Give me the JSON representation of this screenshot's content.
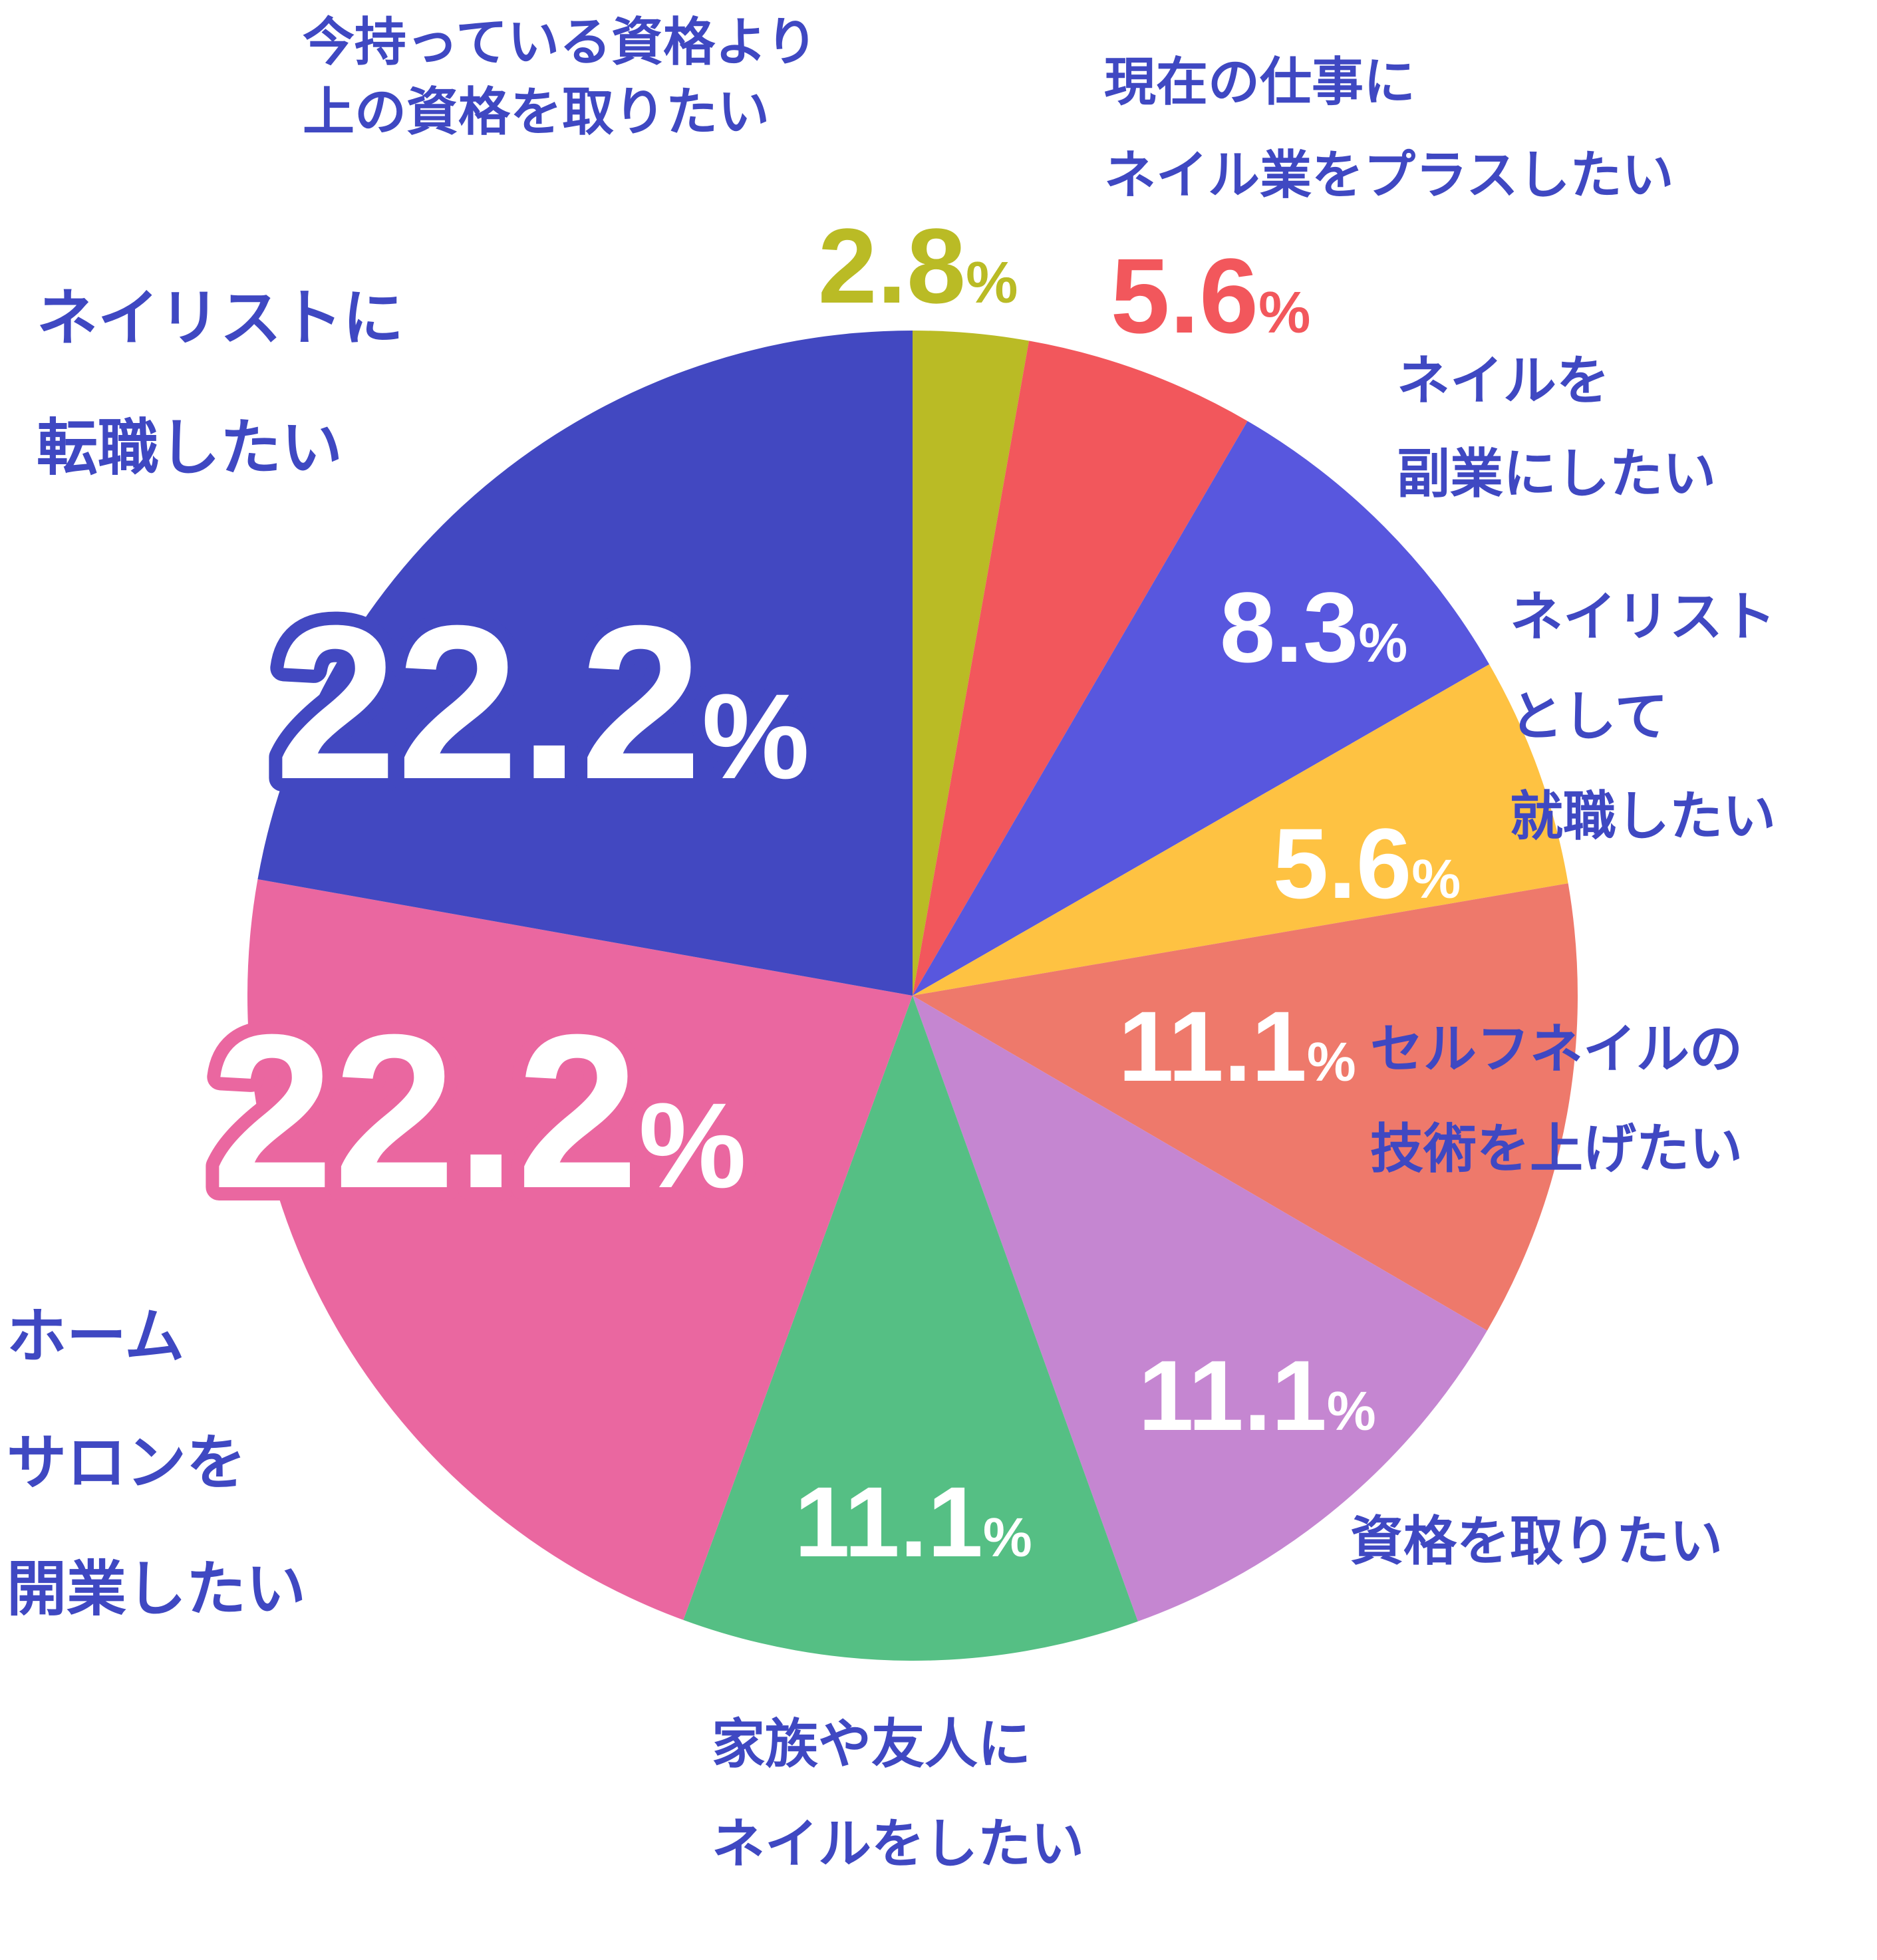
{
  "chart_data": {
    "type": "pie",
    "start": "top",
    "direction": "clockwise",
    "slices": [
      {
        "label_lines": [
          "今持っている資格より",
          "上の資格を取りたい"
        ],
        "value": 2.8,
        "display": "2.8",
        "color": "#BABB25",
        "pct_color": "#BABB25"
      },
      {
        "label_lines": [
          "現在の仕事に",
          "ネイル業をプラスしたい"
        ],
        "value": 5.6,
        "display": "5.6",
        "color": "#F2575C",
        "pct_color": "#F2575C"
      },
      {
        "label_lines": [
          "ネイルを",
          "副業にしたい"
        ],
        "value": 8.3,
        "display": "8.3",
        "color": "#5857DE",
        "pct_color": "#FFFFFF"
      },
      {
        "label_lines": [
          "ネイリスト",
          "として",
          "就職したい"
        ],
        "value": 5.6,
        "display": "5.6",
        "color": "#FEC242",
        "pct_color": "#FFFFFF"
      },
      {
        "label_lines": [
          "セルフネイルの",
          "技術を上げたい"
        ],
        "value": 11.1,
        "display": "11.1",
        "color": "#EE796B",
        "pct_color": "#FFFFFF"
      },
      {
        "label_lines": [
          "資格を取りたい"
        ],
        "value": 11.1,
        "display": "11.1",
        "color": "#C586D1",
        "pct_color": "#FFFFFF"
      },
      {
        "label_lines": [
          "家族や友人に",
          "ネイルをしたい"
        ],
        "value": 11.1,
        "display": "11.1",
        "color": "#55BF84",
        "pct_color": "#FFFFFF"
      },
      {
        "label_lines": [
          "ホーム",
          "サロンを",
          "開業したい"
        ],
        "value": 22.2,
        "display": "22.2",
        "color": "#EA67A0",
        "pct_color": "#FFFFFF",
        "pct_outline": "#EA67A0"
      },
      {
        "label_lines": [
          "ネイリストに",
          "転職したい"
        ],
        "value": 22.2,
        "display": "22.2",
        "color": "#4248C1",
        "pct_color": "#FFFFFF",
        "pct_outline": "#4248C1"
      }
    ],
    "percent_symbol": "%",
    "label_color": "#3F48C2"
  }
}
